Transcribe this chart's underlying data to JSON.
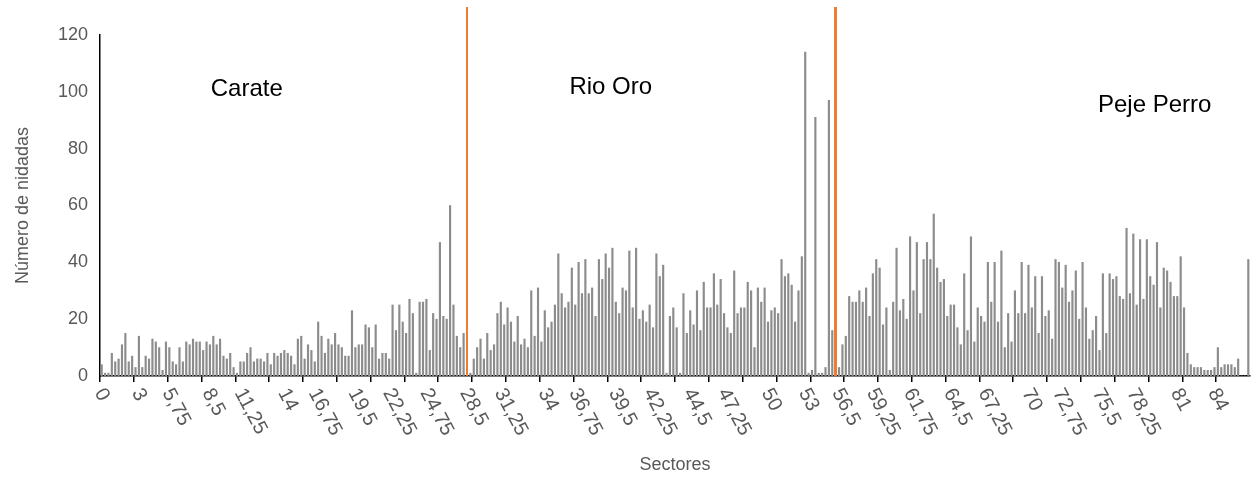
{
  "chart_data": {
    "type": "bar",
    "xlabel": "Sectores",
    "ylabel": "Número de nidadas",
    "categories": [
      "0",
      null,
      null,
      null,
      null,
      null,
      null,
      null,
      null,
      null,
      null,
      "3",
      null,
      null,
      null,
      null,
      null,
      null,
      null,
      null,
      null,
      null,
      "5,75",
      null,
      null,
      null,
      null,
      null,
      null,
      null,
      null,
      null,
      null,
      "8,5",
      null,
      null,
      null,
      null,
      null,
      null,
      null,
      null,
      null,
      null,
      "11,25",
      null,
      null,
      null,
      null,
      null,
      null,
      null,
      null,
      null,
      null,
      "14",
      null,
      null,
      null,
      null,
      null,
      null,
      null,
      null,
      null,
      null,
      "16,75",
      null,
      null,
      null,
      null,
      null,
      null,
      null,
      null,
      null,
      null,
      "19,5",
      null,
      null,
      null,
      null,
      null,
      null,
      null,
      null,
      null,
      null,
      "22,25",
      null,
      null,
      null,
      null,
      null,
      null,
      null,
      null,
      null,
      null,
      "24,75",
      null,
      null,
      null,
      null,
      null,
      null,
      null,
      null,
      null,
      null,
      "28,5",
      null,
      null,
      null,
      null,
      null,
      null,
      null,
      null,
      null,
      null,
      "31,25",
      null,
      null,
      null,
      null,
      null,
      null,
      null,
      null,
      null,
      null,
      "34",
      null,
      null,
      null,
      null,
      null,
      null,
      null,
      null,
      null,
      null,
      "36,75",
      null,
      null,
      null,
      null,
      null,
      null,
      null,
      null,
      null,
      null,
      "39,5",
      null,
      null,
      null,
      null,
      null,
      null,
      null,
      null,
      null,
      null,
      "42,25",
      null,
      null,
      null,
      null,
      null,
      null,
      null,
      null,
      null,
      null,
      "44,5",
      null,
      null,
      null,
      null,
      null,
      null,
      null,
      null,
      null,
      null,
      "47,25",
      null,
      null,
      null,
      null,
      null,
      null,
      null,
      null,
      null,
      null,
      "50",
      null,
      null,
      null,
      null,
      null,
      null,
      null,
      null,
      null,
      null,
      "53",
      null,
      null,
      null,
      null,
      null,
      null,
      null,
      null,
      null,
      null,
      "56,5",
      null,
      null,
      null,
      null,
      null,
      null,
      null,
      null,
      null,
      null,
      "59,25",
      null,
      null,
      null,
      null,
      null,
      null,
      null,
      null,
      null,
      null,
      "61,75",
      null,
      null,
      null,
      null,
      null,
      null,
      null,
      null,
      null,
      null,
      "64,5",
      null,
      null,
      null,
      null,
      null,
      null,
      null,
      null,
      null,
      null,
      "67,25",
      null,
      null,
      null,
      null,
      null,
      null,
      null,
      null,
      null,
      null,
      "70",
      null,
      null,
      null,
      null,
      null,
      null,
      null,
      null,
      null,
      null,
      "72,75",
      null,
      null,
      null,
      null,
      null,
      null,
      null,
      null,
      null,
      null,
      "75,5",
      null,
      null,
      null,
      null,
      null,
      null,
      null,
      null,
      null,
      null,
      "78,25",
      null,
      null,
      null,
      null,
      null,
      null,
      null,
      null,
      null,
      null,
      "81",
      null,
      null,
      null,
      null,
      null,
      null,
      null,
      null,
      null,
      null,
      "84",
      null,
      null,
      null,
      null,
      null,
      null,
      null,
      null,
      null
    ],
    "values": [
      4,
      1,
      1,
      8,
      5,
      6,
      11,
      15,
      5,
      7,
      3,
      14,
      3,
      7,
      6,
      13,
      12,
      10,
      2,
      12,
      10,
      5,
      4,
      10,
      5,
      12,
      11,
      13,
      12,
      12,
      9,
      12,
      11,
      14,
      11,
      13,
      7,
      6,
      8,
      3,
      1,
      5,
      5,
      8,
      10,
      5,
      6,
      6,
      5,
      8,
      4,
      8,
      7,
      8,
      9,
      8,
      7,
      4,
      13,
      14,
      6,
      11,
      9,
      5,
      19,
      14,
      8,
      13,
      11,
      15,
      11,
      10,
      7,
      7,
      23,
      10,
      11,
      11,
      18,
      17,
      10,
      18,
      6,
      8,
      8,
      6,
      25,
      16,
      25,
      19,
      15,
      27,
      22,
      1,
      26,
      26,
      27,
      9,
      22,
      20,
      47,
      21,
      20,
      60,
      25,
      14,
      10,
      15,
      null,
      1,
      6,
      10,
      13,
      6,
      15,
      9,
      11,
      22,
      26,
      18,
      24,
      19,
      12,
      21,
      11,
      13,
      10,
      30,
      14,
      31,
      12,
      23,
      17,
      19,
      25,
      43,
      29,
      24,
      26,
      38,
      25,
      40,
      29,
      41,
      29,
      31,
      21,
      41,
      34,
      43,
      38,
      45,
      26,
      22,
      31,
      30,
      44,
      24,
      45,
      20,
      23,
      19,
      25,
      17,
      43,
      35,
      39,
      1,
      21,
      24,
      17,
      1,
      29,
      15,
      23,
      18,
      30,
      16,
      33,
      24,
      24,
      36,
      25,
      34,
      22,
      17,
      15,
      37,
      22,
      24,
      24,
      33,
      30,
      10,
      31,
      26,
      31,
      19,
      23,
      24,
      22,
      41,
      35,
      36,
      32,
      19,
      30,
      42,
      114,
      1,
      2,
      91,
      1,
      1,
      3,
      97,
      16,
      null,
      3,
      11,
      14,
      28,
      26,
      26,
      30,
      26,
      31,
      21,
      36,
      41,
      38,
      18,
      24,
      2,
      26,
      45,
      23,
      27,
      20,
      49,
      30,
      47,
      22,
      41,
      47,
      41,
      57,
      38,
      33,
      34,
      21,
      25,
      25,
      17,
      11,
      36,
      16,
      49,
      12,
      24,
      21,
      19,
      40,
      26,
      40,
      19,
      44,
      10,
      22,
      12,
      30,
      22,
      40,
      22,
      39,
      24,
      35,
      15,
      35,
      21,
      23,
      13,
      41,
      40,
      31,
      39,
      26,
      30,
      37,
      20,
      40,
      24,
      13,
      16,
      21,
      9,
      36,
      15,
      36,
      34,
      35,
      28,
      27,
      52,
      29,
      50,
      25,
      48,
      27,
      48,
      35,
      32,
      47,
      24,
      38,
      37,
      33,
      28,
      28,
      42,
      24,
      8,
      4,
      3,
      3,
      3,
      2,
      2,
      2,
      3,
      10,
      3,
      4,
      4,
      4,
      3,
      6,
      0,
      0,
      41
    ],
    "color": "#8c8c8c",
    "ylim": [
      0,
      120
    ],
    "yticks": [
      0,
      20,
      40,
      60,
      80,
      100,
      120
    ],
    "grid": false,
    "annotations": [
      "Carate",
      "Rio Oro",
      "Peje Perro"
    ]
  }
}
